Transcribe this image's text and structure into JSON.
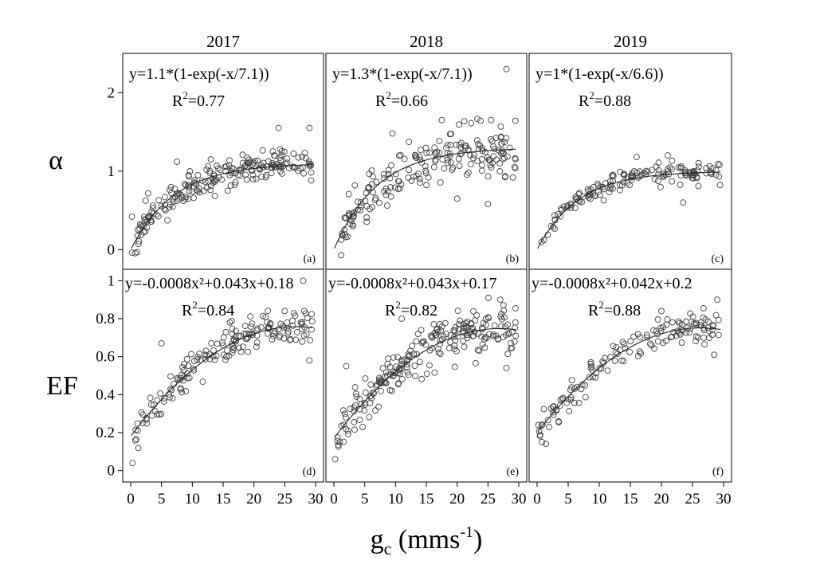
{
  "figure": {
    "y_label_top": "α",
    "y_label_bottom": "EF",
    "x_label_main": "g",
    "x_label_sub": "c",
    "x_label_units": " (mms",
    "x_label_units_sup": "-1",
    "x_label_units_close": ")"
  },
  "chart_data": [
    {
      "id": "a",
      "type": "scatter",
      "year": "2017",
      "panel_label": "(a)",
      "equation": "y=1.1*(1-exp(-x/7.1))",
      "r2_value": "0.77",
      "fit": {
        "kind": "exp",
        "a": 1.1,
        "b": 7.1
      },
      "xlim": [
        0,
        30
      ],
      "ylim": [
        -0.25,
        2.5
      ],
      "yticks": [
        0,
        1,
        2
      ],
      "xticks": [
        0,
        5,
        10,
        15,
        20,
        25,
        30
      ],
      "points": {
        "n": 210,
        "seed": 11,
        "sd": 0.1,
        "outliers": [
          [
            24,
            1.55
          ],
          [
            29,
            1.55
          ],
          [
            7.5,
            1.12
          ],
          [
            13,
            1.15
          ],
          [
            0.2,
            0.42
          ]
        ]
      }
    },
    {
      "id": "b",
      "type": "scatter",
      "year": "2018",
      "panel_label": "(b)",
      "equation": "y=1.3*(1-exp(-x/7.1))",
      "r2_value": "0.66",
      "fit": {
        "kind": "exp",
        "a": 1.3,
        "b": 7.1
      },
      "xlim": [
        0,
        30
      ],
      "ylim": [
        -0.25,
        2.5
      ],
      "yticks": [
        0,
        1,
        2
      ],
      "xticks": [
        0,
        5,
        10,
        15,
        20,
        25,
        30
      ],
      "points": {
        "n": 200,
        "seed": 23,
        "sd": 0.16,
        "outliers": [
          [
            28,
            2.3
          ],
          [
            17.5,
            1.65
          ],
          [
            25,
            0.58
          ],
          [
            20,
            0.65
          ],
          [
            9.5,
            1.48
          ]
        ]
      }
    },
    {
      "id": "c",
      "type": "scatter",
      "year": "2019",
      "panel_label": "(c)",
      "equation": "y=1*(1-exp(-x/6.6))",
      "r2_value": "0.88",
      "fit": {
        "kind": "exp",
        "a": 1.0,
        "b": 6.6
      },
      "xlim": [
        0,
        30
      ],
      "ylim": [
        -0.25,
        2.5
      ],
      "yticks": [
        0,
        1,
        2
      ],
      "xticks": [
        0,
        5,
        10,
        15,
        20,
        25,
        30
      ],
      "points": {
        "n": 150,
        "seed": 37,
        "sd": 0.07,
        "outliers": [
          [
            23.5,
            0.6
          ],
          [
            21,
            1.2
          ],
          [
            16,
            1.18
          ]
        ]
      }
    },
    {
      "id": "d",
      "type": "scatter",
      "year": "2017",
      "panel_label": "(d)",
      "equation": "y=-0.0008x²+0.043x+0.18",
      "r2_value": "0.84",
      "fit": {
        "kind": "quad",
        "a": -0.0008,
        "b": 0.043,
        "c": 0.18
      },
      "xlim": [
        0,
        30
      ],
      "ylim": [
        -0.06,
        1.06
      ],
      "yticks": [
        0,
        0.2,
        0.4,
        0.6,
        0.8,
        1.0
      ],
      "xticks": [
        0,
        5,
        10,
        15,
        20,
        25,
        30
      ],
      "points": {
        "n": 170,
        "seed": 41,
        "sd": 0.045,
        "outliers": [
          [
            0.3,
            0.04
          ],
          [
            5,
            0.67
          ],
          [
            25,
            0.84
          ],
          [
            28,
            1.0
          ],
          [
            29,
            0.58
          ]
        ]
      }
    },
    {
      "id": "e",
      "type": "scatter",
      "year": "2018",
      "panel_label": "(e)",
      "equation": "y=-0.0008x²+0.043x+0.17",
      "r2_value": "0.82",
      "fit": {
        "kind": "quad",
        "a": -0.0008,
        "b": 0.043,
        "c": 0.17
      },
      "xlim": [
        0,
        30
      ],
      "ylim": [
        -0.06,
        1.06
      ],
      "yticks": [
        0,
        0.2,
        0.4,
        0.6,
        0.8,
        1.0
      ],
      "xticks": [
        0,
        5,
        10,
        15,
        20,
        25,
        30
      ],
      "points": {
        "n": 230,
        "seed": 53,
        "sd": 0.06,
        "outliers": [
          [
            0.2,
            0.06
          ],
          [
            2,
            0.55
          ],
          [
            27,
            0.9
          ],
          [
            28,
            0.54
          ],
          [
            11,
            0.8
          ]
        ]
      }
    },
    {
      "id": "f",
      "type": "scatter",
      "year": "2019",
      "panel_label": "(f)",
      "equation": "y=-0.0008x²+0.042x+0.2",
      "r2_value": "0.88",
      "fit": {
        "kind": "quad",
        "a": -0.0008,
        "b": 0.042,
        "c": 0.2
      },
      "xlim": [
        0,
        30
      ],
      "ylim": [
        -0.06,
        1.06
      ],
      "yticks": [
        0,
        0.2,
        0.4,
        0.6,
        0.8,
        1.0
      ],
      "xticks": [
        0,
        5,
        10,
        15,
        20,
        25,
        30
      ],
      "points": {
        "n": 140,
        "seed": 67,
        "sd": 0.04,
        "outliers": [
          [
            0.8,
            0.15
          ],
          [
            29,
            0.9
          ],
          [
            28.5,
            0.61
          ],
          [
            20,
            0.84
          ]
        ]
      }
    }
  ]
}
